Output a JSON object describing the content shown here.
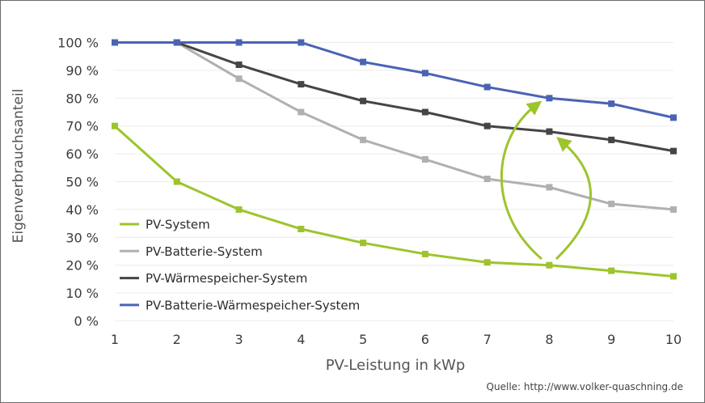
{
  "chart_data": {
    "type": "line",
    "xlabel": "PV-Leistung in kWp",
    "ylabel": "Eigenverbrauchsanteil",
    "x": [
      1,
      2,
      3,
      4,
      5,
      6,
      7,
      8,
      9,
      10
    ],
    "x_tick_labels": [
      "1",
      "2",
      "3",
      "4",
      "5",
      "6",
      "7",
      "8",
      "9",
      "10"
    ],
    "y_tick_labels": [
      "0 %",
      "10 %",
      "20 %",
      "30 %",
      "40 %",
      "50 %",
      "60 %",
      "70 %",
      "80 %",
      "90 %",
      "100 %"
    ],
    "ylim": [
      0,
      100
    ],
    "grid": true,
    "legend_position": "bottom-left",
    "series": [
      {
        "name": "PV-System",
        "color": "#9dc42c",
        "values": [
          70,
          50,
          40,
          33,
          28,
          24,
          21,
          20,
          18,
          16
        ]
      },
      {
        "name": "PV-Batterie-System",
        "color": "#b0b0b0",
        "values": [
          100,
          100,
          87,
          75,
          65,
          58,
          51,
          48,
          42,
          40
        ]
      },
      {
        "name": "PV-Wärmespeicher-System",
        "color": "#454545",
        "values": [
          100,
          100,
          92,
          85,
          79,
          75,
          70,
          68,
          65,
          61
        ]
      },
      {
        "name": "PV-Batterie-Wärmespeicher-System",
        "color": "#4a63b4",
        "values": [
          100,
          100,
          100,
          100,
          93,
          89,
          84,
          80,
          78,
          73
        ]
      }
    ],
    "annotations": [
      {
        "type": "arrow",
        "from_series": "PV-System",
        "to_series": "PV-Batterie-Wärmespeicher-System",
        "x": 8,
        "color": "#9dc42c"
      },
      {
        "type": "arrow",
        "from_series": "PV-System",
        "to_series": "PV-Wärmespeicher-System",
        "x": 8,
        "color": "#9dc42c"
      }
    ]
  },
  "source": "Quelle: http://www.volker-quaschning.de"
}
